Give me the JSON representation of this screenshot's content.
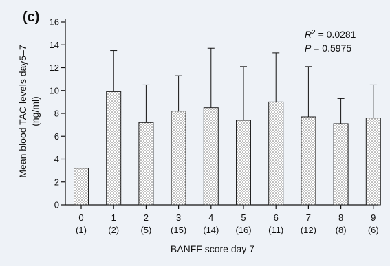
{
  "panel_label": "(c)",
  "chart_data": {
    "type": "bar",
    "categories": [
      "0",
      "1",
      "2",
      "3",
      "4",
      "5",
      "6",
      "7",
      "8",
      "9"
    ],
    "category_counts": [
      "(1)",
      "(2)",
      "(5)",
      "(15)",
      "(14)",
      "(16)",
      "(11)",
      "(12)",
      "(8)",
      "(6)"
    ],
    "values": [
      3.2,
      9.9,
      7.2,
      8.2,
      8.5,
      7.4,
      9.0,
      7.7,
      7.1,
      7.6
    ],
    "error_upper": [
      3.2,
      13.5,
      10.5,
      11.3,
      13.7,
      12.1,
      13.3,
      12.1,
      9.3,
      10.5
    ],
    "xlabel": "BANFF score day 7",
    "ylabel": "Mean blood TAC levels day5–7",
    "ylabel_unit": "(ng/ml)",
    "ylim": [
      0,
      16
    ],
    "yticks": [
      "0",
      "2",
      "4",
      "6",
      "8",
      "10",
      "12",
      "14",
      "16"
    ],
    "annotation": {
      "r2_symbol": "R",
      "r2_exponent": "2",
      "r2_text": " = 0.0281",
      "p_symbol": "P",
      "p_text": " = 0.5975"
    },
    "grid": false,
    "legend": "none",
    "bar_fill": "dotted"
  }
}
